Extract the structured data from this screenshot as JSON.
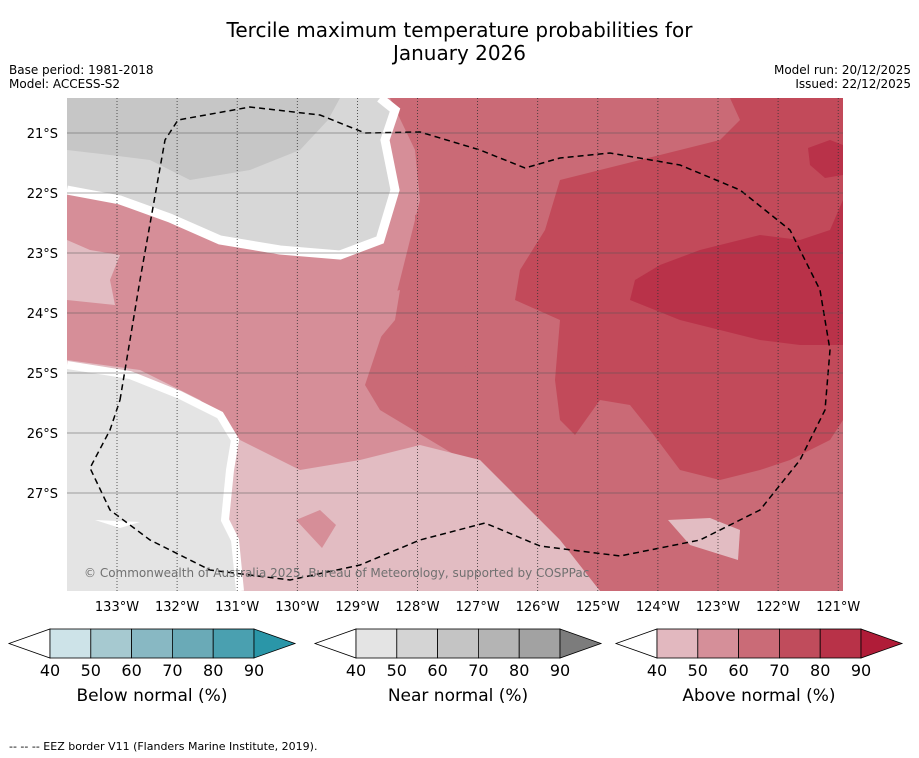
{
  "title_line1": "Tercile maximum temperature probabilities for",
  "title_line2": "January 2026",
  "base_period": "Base period: 1981-2018",
  "model": "Model: ACCESS-S2",
  "model_run": "Model run: 20/12/2025",
  "issued": "Issued: 22/12/2025",
  "copyright": "© Commonwealth of Australia 2025, Bureau of Meteorology, supported by COSPPac",
  "footnote": "-- -- -- EEZ border V11 (Flanders Marine Institute, 2019).",
  "lat_labels": [
    "21°S",
    "22°S",
    "23°S",
    "24°S",
    "25°S",
    "26°S",
    "27°S"
  ],
  "lon_labels": [
    "133°W",
    "132°W",
    "131°W",
    "130°W",
    "129°W",
    "128°W",
    "127°W",
    "126°W",
    "125°W",
    "124°W",
    "123°W",
    "122°W",
    "121°W"
  ],
  "colorbars": [
    {
      "label": "Below normal (%)",
      "ticks": [
        "40",
        "50",
        "60",
        "70",
        "80",
        "90"
      ],
      "colors": [
        "#cde3e8",
        "#a6c9d0",
        "#88b8c3",
        "#6aaab7",
        "#4aa0b0",
        "#2a96a8"
      ]
    },
    {
      "label": "Near normal (%)",
      "ticks": [
        "40",
        "50",
        "60",
        "70",
        "80",
        "90"
      ],
      "colors": [
        "#e4e4e4",
        "#d4d4d4",
        "#c4c4c4",
        "#b4b4b4",
        "#a2a2a2",
        "#7c7c7c"
      ]
    },
    {
      "label": "Above normal (%)",
      "ticks": [
        "40",
        "50",
        "60",
        "70",
        "80",
        "90"
      ],
      "colors": [
        "#e2b8bf",
        "#d58f99",
        "#ca6b77",
        "#c04c5c",
        "#b83248",
        "#b01c38"
      ]
    }
  ],
  "colors": {
    "near40": "#e4e4e4",
    "near50": "#d7d7d7",
    "near60": "#c6c6c6",
    "above40": "#e2bcc2",
    "above50": "#d68e98",
    "above60": "#ca6a76",
    "above70": "#c24a5a",
    "above80": "#b93249"
  }
}
